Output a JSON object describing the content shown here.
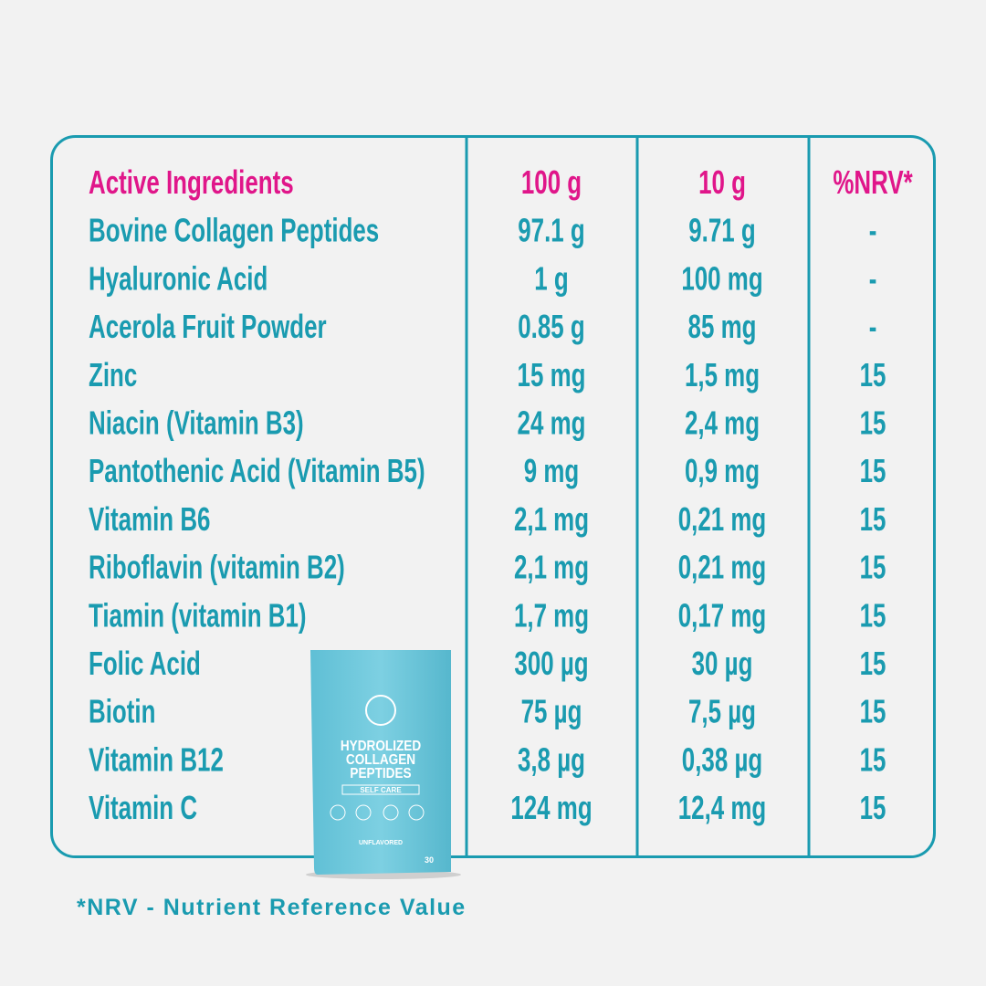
{
  "table": {
    "header": [
      "Active Ingredients",
      "100 g",
      "10 g",
      "%NRV*"
    ],
    "rows": [
      [
        "Bovine Collagen Peptides",
        "97.1 g",
        "9.71 g",
        "-"
      ],
      [
        "Hyaluronic Acid",
        "1 g",
        "100 mg",
        "-"
      ],
      [
        "Acerola Fruit Powder",
        "0.85 g",
        "85 mg",
        "-"
      ],
      [
        "Zinc",
        "15 mg",
        "1,5 mg",
        "15"
      ],
      [
        "Niacin (Vitamin B3)",
        "24 mg",
        "2,4 mg",
        "15"
      ],
      [
        "Pantothenic Acid (Vitamin B5)",
        "9 mg",
        "0,9 mg",
        "15"
      ],
      [
        "Vitamin B6",
        "2,1 mg",
        "0,21 mg",
        "15"
      ],
      [
        "Riboflavin (vitamin B2)",
        "2,1 mg",
        "0,21 mg",
        "15"
      ],
      [
        "Tiamin (vitamin B1)",
        "1,7 mg",
        "0,17 mg",
        "15"
      ],
      [
        "Folic Acid",
        "300 µg",
        "30 µg",
        "15"
      ],
      [
        "Biotin",
        "75 µg",
        "7,5 µg",
        "15"
      ],
      [
        "Vitamin B12",
        "3,8 µg",
        "0,38 µg",
        "15"
      ],
      [
        "Vitamin C",
        "124 mg",
        "12,4 mg",
        "15"
      ]
    ]
  },
  "product": {
    "lines": [
      "HYDROLIZED",
      "COLLAGEN",
      "PEPTIDES"
    ],
    "tag": "SELF CARE",
    "flavor": "UNFLAVORED",
    "count": "30"
  },
  "footnote": "*NRV - Nutrient Reference Value"
}
